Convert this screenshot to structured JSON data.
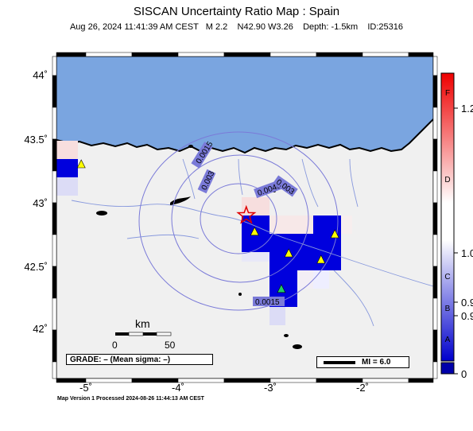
{
  "header": {
    "title": "SISCAN Uncertainty Ratio Map : Spain",
    "subtitle": "Aug 26, 2024 11:41:39 AM CEST   M 2.2    N42.90 W3.26    Depth: -1.5km    ID:25316"
  },
  "map": {
    "lat_labels": [
      "44˚",
      "43.5˚",
      "43˚",
      "42.5˚",
      "42˚"
    ],
    "lon_labels": [
      "-5˚",
      "-4˚",
      "-3˚",
      "-2˚"
    ],
    "contour_labels": [
      "0.0015",
      "0.003",
      "0.0045",
      "0.003",
      "0.0015"
    ],
    "epicenter": {
      "lat": 42.9,
      "lon": -3.26,
      "symbol": "star-icon"
    },
    "stations": [
      {
        "lat": 43.3,
        "lon": -5.05,
        "color": "#ffff00"
      },
      {
        "lat": 42.77,
        "lon": -3.17,
        "color": "#ffff00"
      },
      {
        "lat": 42.6,
        "lon": -2.8,
        "color": "#ffff00"
      },
      {
        "lat": 42.75,
        "lon": -2.3,
        "color": "#ffff00"
      },
      {
        "lat": 42.55,
        "lon": -2.45,
        "color": "#ffff00"
      },
      {
        "lat": 42.32,
        "lon": -2.88,
        "color": "#22cc66"
      }
    ],
    "colors": {
      "sea": "#7aa5e0",
      "land": "#f0f0f0",
      "high": "#0000dd",
      "pink": "#f7dede"
    }
  },
  "scale": {
    "unit": "km",
    "ticks": [
      "0",
      "50"
    ]
  },
  "colorbar": {
    "grades": [
      "F",
      "D",
      "C",
      "B",
      "A"
    ],
    "values": [
      "1.2",
      "1.0",
      "0.9",
      "0.9",
      "0"
    ]
  },
  "grade_box": "GRADE: – (Mean sigma: –)",
  "mi_label": "MI = 6.0",
  "footer": "Map Version 1 Processed 2024-08-26 11:44:13 AM CEST"
}
